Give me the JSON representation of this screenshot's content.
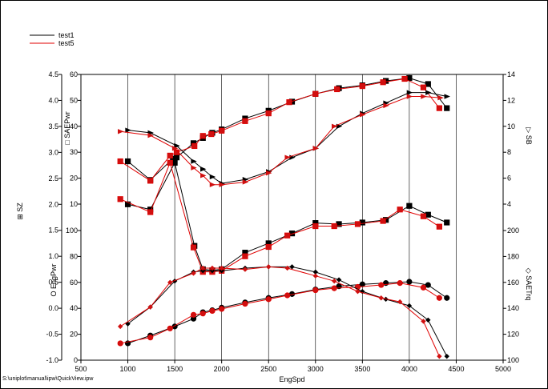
{
  "footer": {
    "file_path": "S:\\uniplot\\manual\\ipw\\QuickView.ipw"
  },
  "chart_data": {
    "type": "line",
    "xlabel": "EngSpd",
    "xlim": [
      500,
      5000
    ],
    "xticks": [
      500,
      1000,
      1500,
      2000,
      2500,
      3000,
      3500,
      4000,
      4500,
      5000
    ],
    "legend": {
      "placement": "top-left"
    },
    "series_styles": [
      {
        "name": "test1",
        "color": "#000000"
      },
      {
        "name": "test5",
        "color": "#e00000"
      }
    ],
    "axes": [
      {
        "id": "SAEPwr",
        "side": "left",
        "label": "SAEPwr",
        "marker": "square",
        "range": [
          10,
          60
        ],
        "ticks": [
          10,
          20,
          30,
          40,
          50,
          60
        ]
      },
      {
        "id": "SZ",
        "side": "left",
        "label": "SZ",
        "marker": "square-plus",
        "range": [
          -1.0,
          4.5
        ],
        "ticks": [
          -1.0,
          -0.5,
          0.0,
          0.5,
          1.0,
          1.5,
          2.0,
          2.5,
          3.0,
          3.5,
          4.0,
          4.5
        ]
      },
      {
        "id": "EngPwr",
        "side": "left",
        "label": "EngPwr",
        "marker": "circle",
        "range": [
          0,
          100
        ],
        "ticks": [
          0,
          20,
          40,
          60,
          80,
          100
        ]
      },
      {
        "id": "SB",
        "side": "right",
        "label": "SB",
        "marker": "triangle",
        "range": [
          4,
          14
        ],
        "ticks": [
          4,
          6,
          8,
          10,
          12,
          14
        ]
      },
      {
        "id": "SAETrq",
        "side": "right",
        "label": "SAETrq",
        "marker": "diamond",
        "range": [
          100,
          200
        ],
        "ticks": [
          100,
          120,
          140,
          160,
          180,
          200
        ]
      }
    ],
    "series": [
      {
        "name": "test1",
        "axis": "SAEPwr",
        "x": [
          1000,
          1240,
          1480,
          1520,
          1700,
          1800,
          1900,
          2000,
          2250,
          2500,
          2750,
          3000,
          3250,
          3500,
          3750,
          4000,
          4200,
          4400
        ],
        "y": [
          26.5,
          19.3,
          27.5,
          28.0,
          33.5,
          35.5,
          37.5,
          38.8,
          43.0,
          46.0,
          49.5,
          52.5,
          54.7,
          55.8,
          57.5,
          58.6,
          56.3,
          47.0
        ]
      },
      {
        "name": "test5",
        "axis": "SAEPwr",
        "x": [
          920,
          1240,
          1450,
          1520,
          1710,
          1800,
          1890,
          2000,
          2250,
          2500,
          2720,
          3000,
          3230,
          3500,
          3720,
          3950,
          4150,
          4320
        ],
        "y": [
          26.5,
          19.0,
          28.7,
          30.0,
          32.4,
          36.3,
          37.0,
          38.3,
          42.0,
          45.0,
          49.3,
          52.5,
          54.3,
          55.5,
          57.0,
          58.3,
          55.0,
          47.0
        ]
      },
      {
        "name": "test1",
        "axis": "SB",
        "x": [
          1000,
          1240,
          1520,
          1700,
          1800,
          1900,
          2000,
          2250,
          2500,
          2750,
          3000,
          3250,
          3500,
          3750,
          4000,
          4200,
          4400
        ],
        "y": [
          9.7,
          9.5,
          8.5,
          7.3,
          6.7,
          6.1,
          5.6,
          5.9,
          6.5,
          7.6,
          8.3,
          10.0,
          11.0,
          11.8,
          12.6,
          12.6,
          12.3
        ]
      },
      {
        "name": "test5",
        "axis": "SB",
        "x": [
          920,
          1240,
          1500,
          1700,
          1800,
          1900,
          2000,
          2250,
          2500,
          2700,
          3000,
          3200,
          3500,
          3750,
          4000,
          4150,
          4330
        ],
        "y": [
          9.6,
          9.3,
          8.3,
          6.8,
          6.2,
          5.5,
          5.5,
          5.7,
          6.4,
          7.6,
          8.3,
          10.0,
          10.9,
          11.6,
          12.3,
          12.3,
          12.2
        ]
      },
      {
        "name": "test1",
        "axis": "SZ",
        "x": [
          1000,
          1240,
          1500,
          1710,
          1800,
          1900,
          2000,
          2250,
          2500,
          2750,
          3000,
          3250,
          3500,
          3750,
          4000,
          4200,
          4400
        ],
        "y": [
          2.0,
          1.9,
          2.8,
          1.2,
          0.75,
          0.73,
          0.75,
          1.07,
          1.25,
          1.44,
          1.64,
          1.62,
          1.65,
          1.7,
          1.97,
          1.8,
          1.65
        ]
      },
      {
        "name": "test5",
        "axis": "SZ",
        "x": [
          920,
          1240,
          1450,
          1700,
          1800,
          1900,
          2000,
          2250,
          2500,
          2700,
          3000,
          3200,
          3450,
          3720,
          3900,
          4150,
          4320
        ],
        "y": [
          2.1,
          1.85,
          2.8,
          1.17,
          0.7,
          0.7,
          0.72,
          1.0,
          1.18,
          1.4,
          1.58,
          1.58,
          1.62,
          1.68,
          1.9,
          1.77,
          1.57
        ]
      },
      {
        "name": "test1",
        "axis": "EngPwr",
        "x": [
          1000,
          1240,
          1500,
          1700,
          1800,
          1900,
          2000,
          2250,
          2500,
          2750,
          3000,
          3250,
          3500,
          3750,
          4000,
          4200,
          4400
        ],
        "y": [
          13,
          19,
          26,
          32,
          37,
          38.5,
          40.5,
          44.5,
          48,
          51,
          54.5,
          57,
          58.5,
          59.5,
          60.5,
          58,
          48
        ]
      },
      {
        "name": "test5",
        "axis": "EngPwr",
        "x": [
          920,
          1240,
          1450,
          1700,
          1800,
          1900,
          2000,
          2250,
          2500,
          2700,
          3000,
          3200,
          3450,
          3700,
          3900,
          4150,
          4320
        ],
        "y": [
          13,
          17.5,
          24.5,
          35,
          36,
          38,
          39.5,
          43.5,
          47,
          50,
          54,
          55.5,
          56.5,
          58,
          59.5,
          56,
          48
        ]
      },
      {
        "name": "test1",
        "axis": "SAETrq",
        "x": [
          1000,
          1240,
          1500,
          1700,
          1800,
          1900,
          2000,
          2250,
          2500,
          2750,
          3000,
          3250,
          3500,
          3750,
          4000,
          4200,
          4400
        ],
        "y": [
          128,
          141,
          161,
          168,
          169,
          169,
          169,
          171,
          172,
          172,
          168,
          162,
          153,
          147,
          142,
          131,
          103
        ]
      },
      {
        "name": "test5",
        "axis": "SAETrq",
        "x": [
          920,
          1240,
          1450,
          1700,
          1800,
          1900,
          2000,
          2250,
          2500,
          2700,
          3000,
          3200,
          3450,
          3700,
          3900,
          4150,
          4320
        ],
        "y": [
          126,
          141,
          160,
          167,
          171,
          171,
          171,
          170,
          172,
          171,
          165,
          161,
          153,
          148,
          145,
          130,
          103
        ]
      }
    ]
  }
}
